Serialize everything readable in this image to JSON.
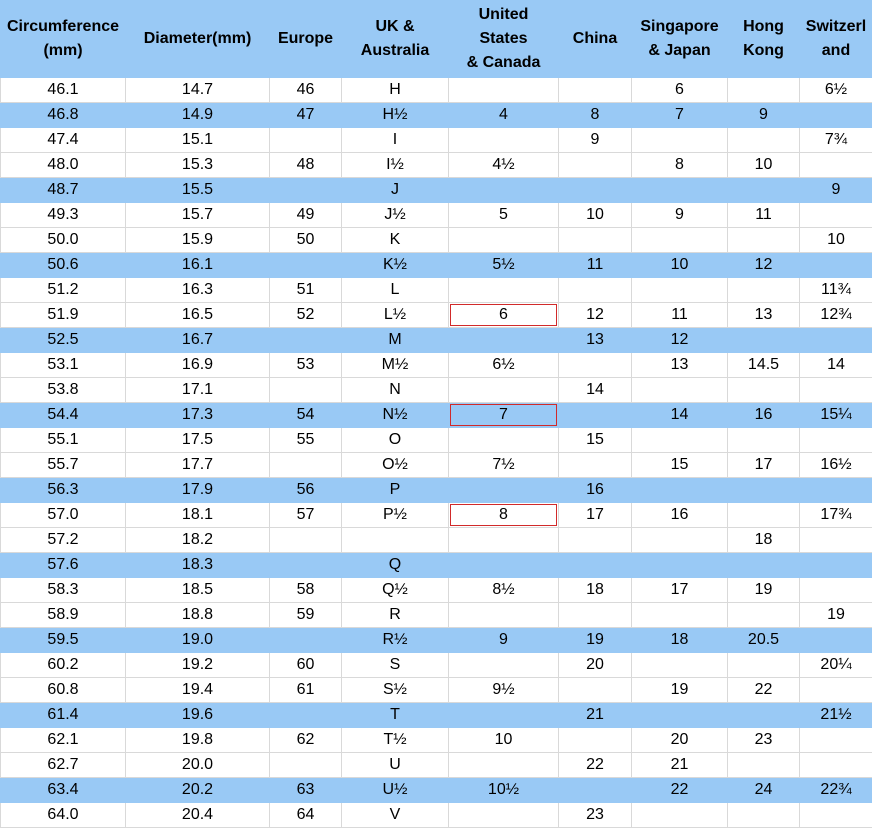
{
  "headers": [
    "Circumference (mm)",
    "Diameter(mm)",
    "Europe",
    "UK & Australia",
    "United States & Canada",
    "China",
    "Singapore & Japan",
    "Hong Kong",
    "Switzerl and"
  ],
  "headers_display": [
    [
      "Circumference",
      "(mm)"
    ],
    [
      "Diameter(mm)"
    ],
    [
      "Europe"
    ],
    [
      "UK &",
      "Australia"
    ],
    [
      "United",
      "States",
      "& Canada"
    ],
    [
      "China"
    ],
    [
      "Singapore",
      "& Japan"
    ],
    [
      "Hong",
      "Kong"
    ],
    [
      "Switzerl",
      "and"
    ]
  ],
  "rows": [
    [
      "46.1",
      "14.7",
      "46",
      "H",
      "",
      "",
      "6",
      "",
      "6½"
    ],
    [
      "46.8",
      "14.9",
      "47",
      "H½",
      "4",
      "8",
      "7",
      "9",
      ""
    ],
    [
      "47.4",
      "15.1",
      "",
      "I",
      "",
      "9",
      "",
      "",
      "7¾"
    ],
    [
      "48.0",
      "15.3",
      "48",
      "I½",
      "4½",
      "",
      "8",
      "10",
      ""
    ],
    [
      "48.7",
      "15.5",
      "",
      "J",
      "",
      "",
      "",
      "",
      "9"
    ],
    [
      "49.3",
      "15.7",
      "49",
      "J½",
      "5",
      "10",
      "9",
      "11",
      ""
    ],
    [
      "50.0",
      "15.9",
      "50",
      "K",
      "",
      "",
      "",
      "",
      "10"
    ],
    [
      "50.6",
      "16.1",
      "",
      "K½",
      "5½",
      "11",
      "10",
      "12",
      ""
    ],
    [
      "51.2",
      "16.3",
      "51",
      "L",
      "",
      "",
      "",
      "",
      "11¾"
    ],
    [
      "51.9",
      "16.5",
      "52",
      "L½",
      "6",
      "12",
      "11",
      "13",
      "12¾"
    ],
    [
      "52.5",
      "16.7",
      "",
      "M",
      "",
      "13",
      "12",
      "",
      ""
    ],
    [
      "53.1",
      "16.9",
      "53",
      "M½",
      "6½",
      "",
      "13",
      "14.5",
      "14"
    ],
    [
      "53.8",
      "17.1",
      "",
      "N",
      "",
      "14",
      "",
      "",
      ""
    ],
    [
      "54.4",
      "17.3",
      "54",
      "N½",
      "7",
      "",
      "14",
      "16",
      "15¼"
    ],
    [
      "55.1",
      "17.5",
      "55",
      "O",
      "",
      "15",
      "",
      "",
      ""
    ],
    [
      "55.7",
      "17.7",
      "",
      "O½",
      "7½",
      "",
      "15",
      "17",
      "16½"
    ],
    [
      "56.3",
      "17.9",
      "56",
      "P",
      "",
      "16",
      "",
      "",
      ""
    ],
    [
      "57.0",
      "18.1",
      "57",
      "P½",
      "8",
      "17",
      "16",
      "",
      "17¾"
    ],
    [
      "57.2",
      "18.2",
      "",
      "",
      "",
      "",
      "",
      "18",
      ""
    ],
    [
      "57.6",
      "18.3",
      "",
      "Q",
      "",
      "",
      "",
      "",
      ""
    ],
    [
      "58.3",
      "18.5",
      "58",
      "Q½",
      "8½",
      "18",
      "17",
      "19",
      ""
    ],
    [
      "58.9",
      "18.8",
      "59",
      "R",
      "",
      "",
      "",
      "",
      "19"
    ],
    [
      "59.5",
      "19.0",
      "",
      "R½",
      "9",
      "19",
      "18",
      "20.5",
      ""
    ],
    [
      "60.2",
      "19.2",
      "60",
      "S",
      "",
      "20",
      "",
      "",
      "20¼"
    ],
    [
      "60.8",
      "19.4",
      "61",
      "S½",
      "9½",
      "",
      "19",
      "22",
      ""
    ],
    [
      "61.4",
      "19.6",
      "",
      "T",
      "",
      "21",
      "",
      "",
      "21½"
    ],
    [
      "62.1",
      "19.8",
      "62",
      "T½",
      "10",
      "",
      "20",
      "23",
      ""
    ],
    [
      "62.7",
      "20.0",
      "",
      "U",
      "",
      "22",
      "21",
      "",
      ""
    ],
    [
      "63.4",
      "20.2",
      "63",
      "U½",
      "10½",
      "",
      "22",
      "24",
      "22¾"
    ],
    [
      "64.0",
      "20.4",
      "64",
      "V",
      "",
      "23",
      "",
      "",
      ""
    ]
  ],
  "highlighted_rows": [
    1,
    4,
    7,
    10,
    13,
    16,
    19,
    22,
    25,
    28
  ],
  "boxed_cells": [
    [
      9,
      4
    ],
    [
      13,
      4
    ],
    [
      17,
      4
    ]
  ],
  "colors": {
    "header_bg": "#99c9f5",
    "band_bg": "#99c9f5",
    "box_border": "#d12a2a",
    "grid_line": "#d9d9d9"
  }
}
